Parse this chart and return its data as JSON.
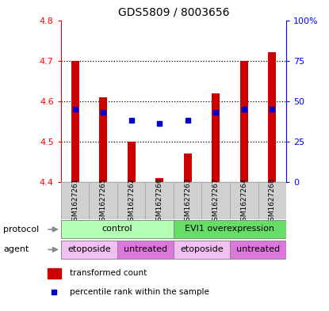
{
  "title": "GDS5809 / 8003656",
  "samples": [
    "GSM1627261",
    "GSM1627265",
    "GSM1627262",
    "GSM1627266",
    "GSM1627263",
    "GSM1627267",
    "GSM1627264",
    "GSM1627268"
  ],
  "transformed_counts": [
    4.7,
    4.61,
    4.5,
    4.41,
    4.47,
    4.62,
    4.7,
    4.72
  ],
  "percentile_ranks_pct": [
    45,
    43,
    38,
    36,
    38,
    43,
    45,
    45
  ],
  "ylim_left": [
    4.4,
    4.8
  ],
  "ylim_right": [
    0,
    100
  ],
  "yticks_left": [
    4.4,
    4.5,
    4.6,
    4.7,
    4.8
  ],
  "yticks_right": [
    0,
    25,
    50,
    75,
    100
  ],
  "ytick_labels_right": [
    "0",
    "25",
    "50",
    "75",
    "100%"
  ],
  "bar_color": "#cc0000",
  "dot_color": "#0000cc",
  "bar_bottom": 4.4,
  "protocol_labels": [
    "control",
    "EVI1 overexpression"
  ],
  "protocol_ranges": [
    [
      0,
      4
    ],
    [
      4,
      8
    ]
  ],
  "protocol_color_left": "#b3ffb3",
  "protocol_color_right": "#66dd66",
  "agent_labels": [
    "etoposide",
    "untreated",
    "etoposide",
    "untreated"
  ],
  "agent_ranges": [
    [
      0,
      2
    ],
    [
      2,
      4
    ],
    [
      4,
      6
    ],
    [
      6,
      8
    ]
  ],
  "agent_colors": [
    "#f0c0f0",
    "#dd77dd",
    "#f0c0f0",
    "#dd77dd"
  ],
  "legend_red": "transformed count",
  "legend_blue": "percentile rank within the sample",
  "grid_dotted_at": [
    4.5,
    4.6,
    4.7
  ]
}
